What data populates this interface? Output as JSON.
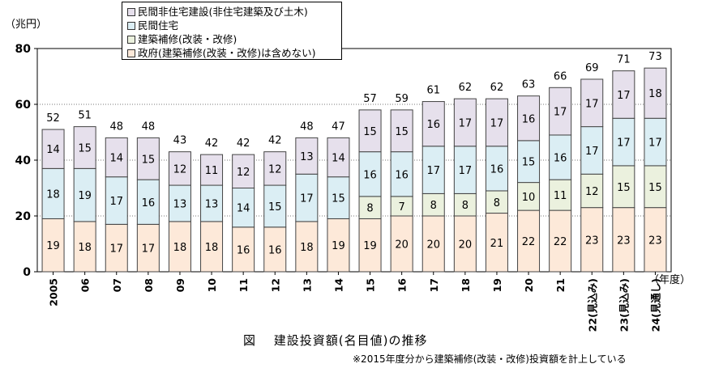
{
  "chart_data": {
    "type": "bar",
    "stacked": true,
    "unit_label": "（兆円）",
    "x_unit_label": "（年度）",
    "categories": [
      "2005",
      "06",
      "07",
      "08",
      "09",
      "10",
      "11",
      "12",
      "13",
      "14",
      "15",
      "16",
      "17",
      "18",
      "19",
      "20",
      "21",
      "22(見込み)",
      "23(見込み)",
      "24(見通し)"
    ],
    "ylim": [
      0,
      80
    ],
    "yticks": [
      0,
      20,
      40,
      60,
      80
    ],
    "grid": "dotted",
    "legend_position": "top-left",
    "series": [
      {
        "name": "政府（建築補修（改装・改修）は含めない）",
        "color": "#fde9d9",
        "values": [
          19,
          18,
          17,
          17,
          18,
          18,
          16,
          16,
          18,
          19,
          19,
          20,
          20,
          20,
          21,
          22,
          22,
          23,
          23,
          23
        ]
      },
      {
        "name": "建築補修（改装・改修）",
        "color": "#ebf1de",
        "values": [
          null,
          null,
          null,
          null,
          null,
          null,
          null,
          null,
          null,
          null,
          8,
          7,
          8,
          8,
          8,
          10,
          11,
          12,
          15,
          15
        ]
      },
      {
        "name": "民間住宅",
        "color": "#dbeef4",
        "values": [
          18,
          19,
          17,
          16,
          13,
          13,
          14,
          15,
          17,
          15,
          16,
          16,
          17,
          17,
          16,
          15,
          16,
          17,
          17,
          17
        ]
      },
      {
        "name": "民間非住宅建設（非住宅建築及び土木）",
        "color": "#e6e0ec",
        "values": [
          14,
          15,
          14,
          15,
          12,
          11,
          12,
          12,
          13,
          14,
          15,
          15,
          16,
          17,
          17,
          16,
          17,
          17,
          17,
          18
        ]
      }
    ],
    "totals": [
      52,
      51,
      48,
      48,
      43,
      42,
      42,
      42,
      48,
      47,
      57,
      59,
      61,
      62,
      62,
      63,
      66,
      69,
      71,
      73
    ]
  },
  "legend_items": [
    {
      "label": "民間非住宅建設(非住宅建築及び土木)",
      "color": "#e6e0ec"
    },
    {
      "label": "民間住宅",
      "color": "#dbeef4"
    },
    {
      "label": "建築補修(改装・改修)",
      "color": "#ebf1de"
    },
    {
      "label": "政府(建築補修(改装・改修)は含めない)",
      "color": "#fde9d9"
    }
  ],
  "caption": "図　 建設投資額(名目値)の推移",
  "note": "※2015年度分から建築補修(改装・改修)投資額を計上している"
}
